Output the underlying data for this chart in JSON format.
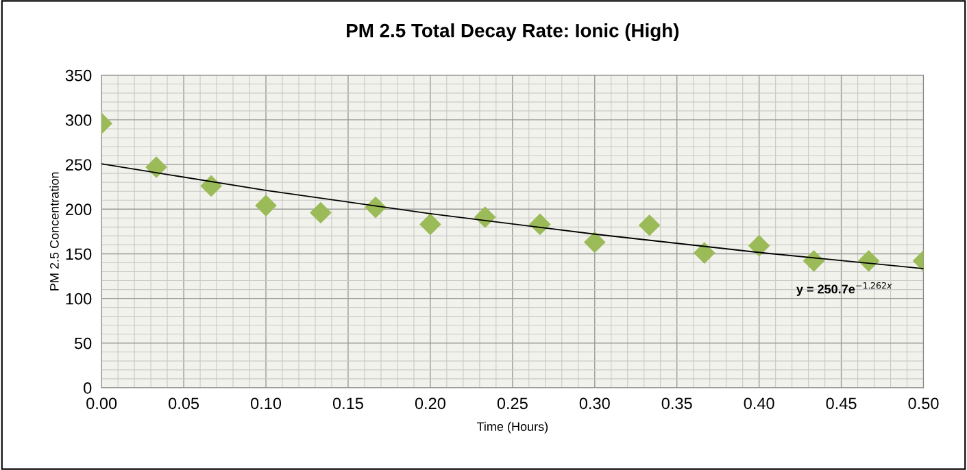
{
  "chart_data": {
    "type": "scatter",
    "title": "PM 2.5 Total Decay Rate: Ionic (High)",
    "xlabel": "Time (Hours)",
    "ylabel": "PM 2.5 Concentration",
    "x": [
      0,
      0.0333,
      0.0667,
      0.1,
      0.1333,
      0.1667,
      0.2,
      0.2333,
      0.2667,
      0.3,
      0.3333,
      0.3667,
      0.4,
      0.4333,
      0.4667,
      0.5
    ],
    "series": [
      {
        "color": "#9bbb59",
        "marker": "diamond",
        "values": [
          296,
          247,
          226,
          204,
          196,
          202,
          183,
          191,
          183,
          163,
          182,
          151,
          159,
          142,
          142,
          142
        ]
      },
      {
        "type": "line",
        "color": "#000000",
        "marker": "none",
        "line_style": "solid",
        "x": [
          0,
          0.1,
          0.2,
          0.3,
          0.4,
          0.5
        ],
        "values": [
          250.7,
          221,
          195,
          172,
          151.5,
          133.4
        ]
      }
    ],
    "annotations": [
      "y = 250.7e$^{−1.262x}$"
    ],
    "xlim": [
      0,
      0.5
    ],
    "xticks": [
      {
        "value": 0,
        "label": "0.00"
      },
      {
        "value": 0.05,
        "label": "0.05"
      },
      {
        "value": 0.1,
        "label": "0.10"
      },
      {
        "value": 0.15,
        "label": "0.15"
      },
      {
        "value": 0.2,
        "label": "0.20"
      },
      {
        "value": 0.25,
        "label": "0.25"
      },
      {
        "value": 0.3,
        "label": "0.30"
      },
      {
        "value": 0.35,
        "label": "0.35"
      },
      {
        "value": 0.4,
        "label": "0.40"
      },
      {
        "value": 0.45,
        "label": "0.45"
      },
      {
        "value": 0.5,
        "label": "0.50"
      }
    ],
    "ylim": [
      0,
      350
    ],
    "yticks": [
      0,
      50,
      100,
      150,
      200,
      250,
      300,
      350
    ],
    "grid": true,
    "legend": false
  }
}
